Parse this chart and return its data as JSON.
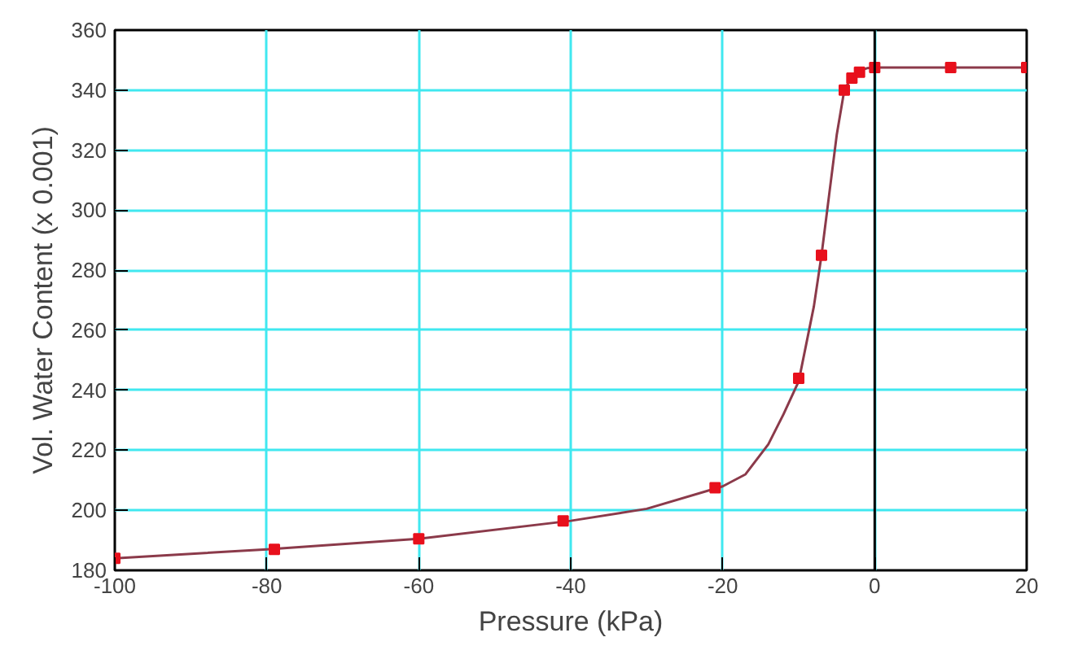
{
  "chart_data": {
    "type": "line",
    "xlabel": "Pressure (kPa)",
    "ylabel": "Vol. Water Content (x 0.001)",
    "xlim": [
      -100,
      20
    ],
    "ylim": [
      180,
      360
    ],
    "xticks": [
      -100,
      -80,
      -60,
      -40,
      -20,
      0,
      20
    ],
    "yticks": [
      180,
      200,
      220,
      240,
      260,
      280,
      300,
      320,
      340,
      360
    ],
    "grid": true,
    "ref_lines": [
      {
        "axis": "x",
        "value": 0,
        "color": "#000000"
      }
    ],
    "series": [
      {
        "color": "#8b3a4a",
        "marker": "none",
        "x": [
          -100,
          -80,
          -60,
          -40,
          -30,
          -20,
          -17,
          -14,
          -12,
          -10,
          -8,
          -7,
          -6,
          -5,
          -4,
          -3,
          -2,
          -1,
          0,
          20
        ],
        "values": [
          184,
          187,
          190.5,
          196.5,
          200.5,
          208,
          212,
          222,
          232,
          243,
          268,
          285,
          305,
          325,
          340,
          344.5,
          346.5,
          347.3,
          347.5,
          347.5
        ]
      },
      {
        "type": "scatter",
        "color": "#e8101c",
        "marker": "square",
        "x": [
          -100,
          -79,
          -60,
          -41,
          -21,
          -10,
          -7,
          -4,
          -3,
          -2,
          0,
          10,
          20
        ],
        "values": [
          184,
          187,
          190.5,
          196.5,
          207.5,
          244,
          285,
          340,
          344,
          346,
          347.5,
          347.5,
          347.5
        ]
      }
    ]
  }
}
